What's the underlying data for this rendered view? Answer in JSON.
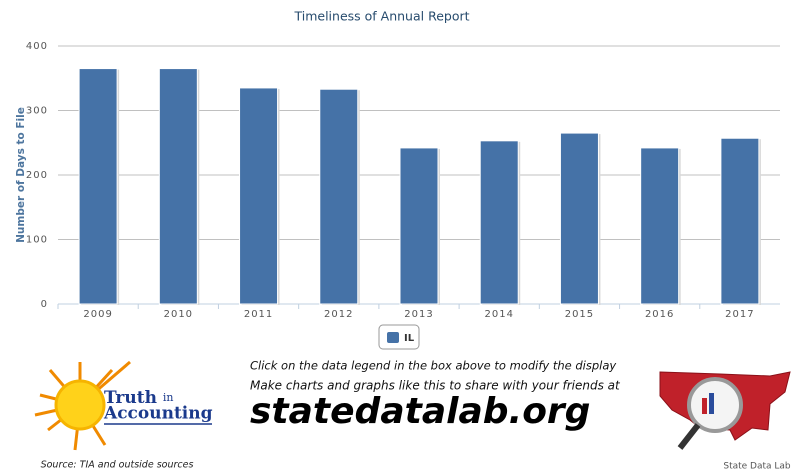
{
  "chart_data": {
    "type": "bar",
    "title": "Timeliness of Annual Report",
    "y_label": "Number of Days to File",
    "categories": [
      "2009",
      "2010",
      "2011",
      "2012",
      "2013",
      "2014",
      "2015",
      "2016",
      "2017"
    ],
    "series": [
      {
        "name": "IL",
        "color": "#4572a7",
        "values": [
          365,
          365,
          335,
          333,
          242,
          253,
          265,
          242,
          257
        ]
      }
    ],
    "ylim": [
      0,
      400
    ],
    "yticks": [
      0,
      100,
      200,
      300,
      400
    ],
    "grid": true,
    "legend": "bottom"
  },
  "footer": {
    "instruction": "Click on the data legend in the box above to modify the display",
    "promo": "Make charts and graphs like this to share with your friends at",
    "site": "statedatalab.org",
    "logo_line1": "Truth",
    "logo_line1b": "in",
    "logo_line2": "Accounting",
    "source": "Source: TIA and outside sources",
    "brand": "State Data Lab"
  }
}
